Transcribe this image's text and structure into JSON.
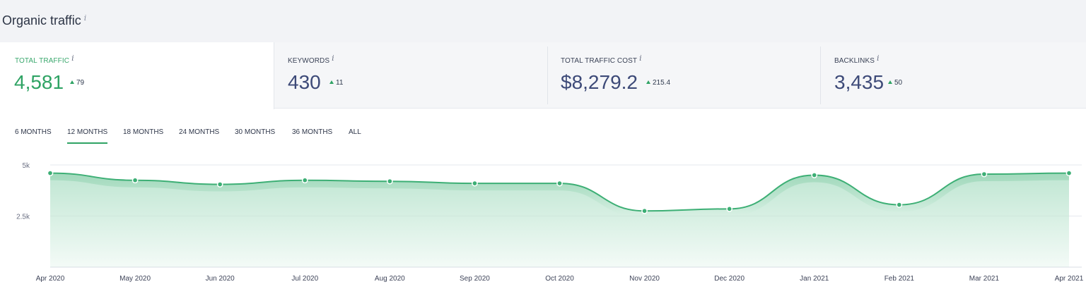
{
  "header": {
    "title": "Organic traffic",
    "info": "i"
  },
  "metrics": [
    {
      "label": "TOTAL TRAFFIC",
      "info": "i",
      "value": "4,581",
      "delta": "79",
      "active": true
    },
    {
      "label": "KEYWORDS",
      "info": "i",
      "value": "430",
      "delta": "11",
      "active": false
    },
    {
      "label": "TOTAL TRAFFIC COST",
      "info": "i",
      "value": "$8,279.2",
      "delta": "215.4",
      "active": false
    },
    {
      "label": "BACKLINKS",
      "info": "i",
      "value": "3,435",
      "delta": "50",
      "active": false
    }
  ],
  "ranges": [
    "6 MONTHS",
    "12 MONTHS",
    "18 MONTHS",
    "24 MONTHS",
    "30 MONTHS",
    "36 MONTHS",
    "ALL"
  ],
  "active_range": "12 MONTHS",
  "colors": {
    "accent": "#2fa364",
    "line": "#3daf75",
    "fill": "#bfe6d2",
    "value_dark": "#3d4a78"
  },
  "chart_data": {
    "type": "area",
    "title": "",
    "xlabel": "",
    "ylabel": "",
    "categories": [
      "Apr 2020",
      "May 2020",
      "Jun 2020",
      "Jul 2020",
      "Aug 2020",
      "Sep 2020",
      "Oct 2020",
      "Nov 2020",
      "Dec 2020",
      "Jan 2021",
      "Feb 2021",
      "Mar 2021",
      "Apr 2021"
    ],
    "values": [
      4600,
      4250,
      4050,
      4250,
      4200,
      4100,
      4100,
      2750,
      2850,
      4500,
      3050,
      4550,
      4600
    ],
    "y_ticks": [
      {
        "value": 5000,
        "label": "5k"
      },
      {
        "value": 2500,
        "label": "2.5k"
      }
    ],
    "ylim": [
      0,
      5000
    ],
    "grid": true,
    "legend": "none"
  }
}
